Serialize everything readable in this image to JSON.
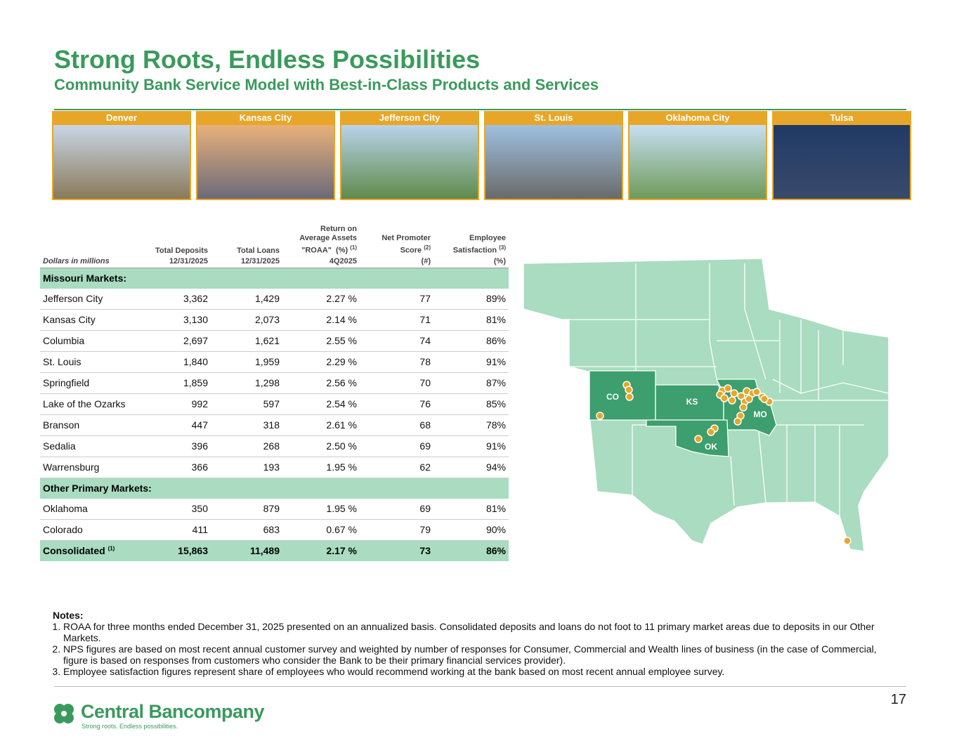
{
  "header": {
    "title": "Strong Roots, Endless Possibilities",
    "subtitle": "Community Bank Service Model with Best-in-Class Products and Services"
  },
  "cities": [
    "Denver",
    "Kansas City",
    "Jefferson City",
    "St. Louis",
    "Oklahoma City",
    "Tulsa"
  ],
  "table": {
    "units_label": "Dollars in millions",
    "columns": [
      {
        "lines": [
          "Total Deposits"
        ],
        "period": "12/31/2025"
      },
      {
        "lines": [
          "Total Loans"
        ],
        "period": "12/31/2025"
      },
      {
        "lines": [
          "Return on",
          "Average Assets",
          "\"ROAA\"  (%)"
        ],
        "note": "(1)",
        "period": "4Q2025"
      },
      {
        "lines": [
          "Net Promoter",
          "Score"
        ],
        "note": "(2)",
        "period": "(#)"
      },
      {
        "lines": [
          "Employee",
          "Satisfaction"
        ],
        "note": "(3)",
        "period": "(%)"
      }
    ],
    "sections": [
      {
        "title": "Missouri Markets:",
        "rows": [
          [
            "Jefferson City",
            "3,362",
            "1,429",
            "2.27 %",
            "77",
            "89%"
          ],
          [
            "Kansas City",
            "3,130",
            "2,073",
            "2.14 %",
            "71",
            "81%"
          ],
          [
            "Columbia",
            "2,697",
            "1,621",
            "2.55 %",
            "74",
            "86%"
          ],
          [
            "St. Louis",
            "1,840",
            "1,959",
            "2.29 %",
            "78",
            "91%"
          ],
          [
            "Springfield",
            "1,859",
            "1,298",
            "2.56 %",
            "70",
            "87%"
          ],
          [
            "Lake of the Ozarks",
            "992",
            "597",
            "2.54 %",
            "76",
            "85%"
          ],
          [
            "Branson",
            "447",
            "318",
            "2.61 %",
            "68",
            "78%"
          ],
          [
            "Sedalia",
            "396",
            "268",
            "2.50 %",
            "69",
            "91%"
          ],
          [
            "Warrensburg",
            "366",
            "193",
            "1.95 %",
            "62",
            "94%"
          ]
        ]
      },
      {
        "title": "Other Primary Markets:",
        "rows": [
          [
            "Oklahoma",
            "350",
            "879",
            "1.95 %",
            "69",
            "81%"
          ],
          [
            "Colorado",
            "411",
            "683",
            "0.67 %",
            "79",
            "90%"
          ]
        ]
      }
    ],
    "total": {
      "name": "Consolidated",
      "note": "(1)",
      "cells": [
        "15,863",
        "11,489",
        "2.17 %",
        "73",
        "86%"
      ]
    }
  },
  "map": {
    "labels": [
      "CO",
      "KS",
      "MO",
      "OK"
    ]
  },
  "notes": {
    "title": "Notes:",
    "items": [
      "ROAA for three months ended December 31, 2025 presented on an annualized basis. Consolidated deposits and loans do not foot to 11 primary market areas due to deposits in our Other Markets.",
      "NPS figures are based on most recent annual customer survey and weighted by number of responses for Consumer, Commercial and Wealth lines of business (in the case of Commercial, figure is based on responses from customers who consider the Bank to be their primary financial services provider).",
      "Employee satisfaction figures represent share of employees who would recommend working at the bank based on most recent annual employee survey."
    ]
  },
  "footer": {
    "page": "17",
    "logo_name": "Central Bancompany",
    "tagline": "Strong roots. Endless possibilities."
  }
}
